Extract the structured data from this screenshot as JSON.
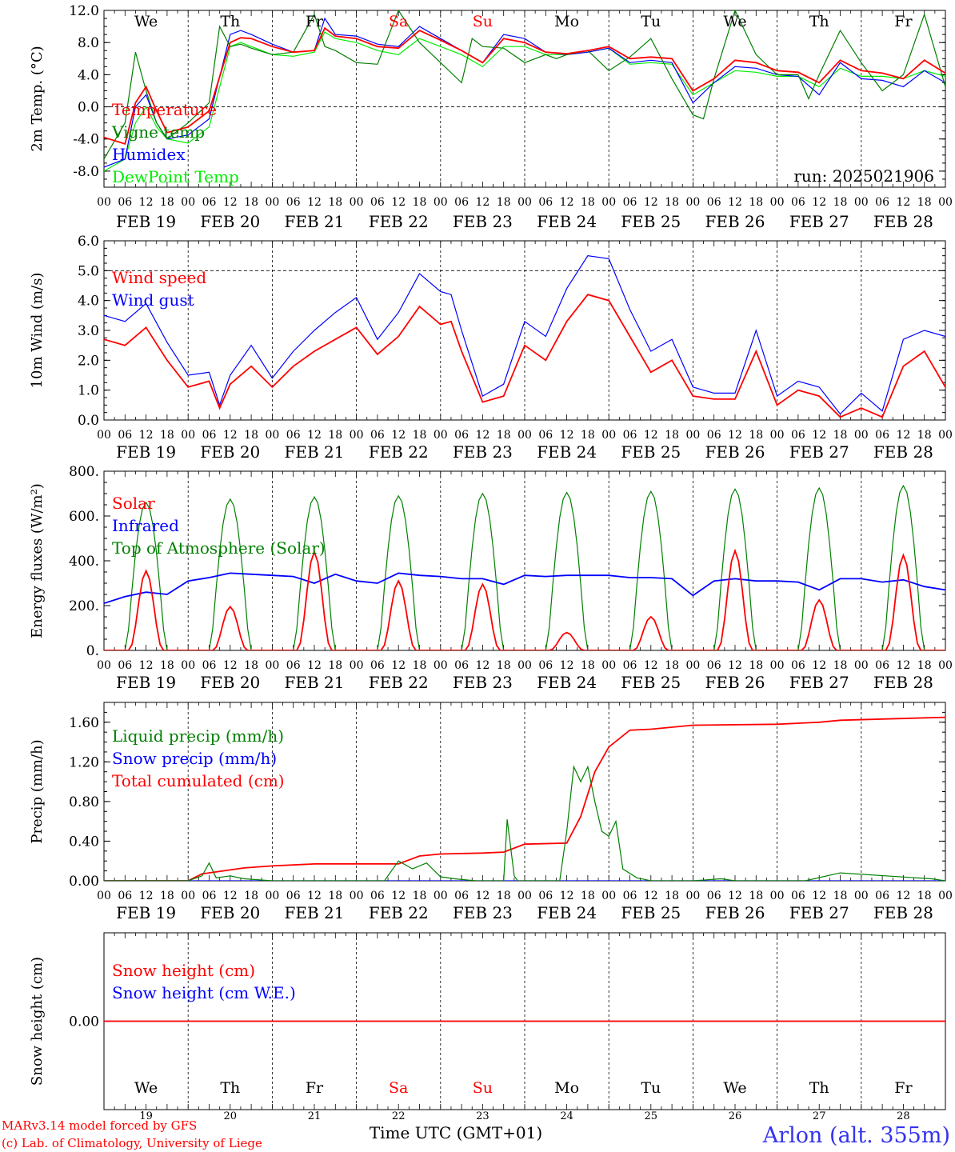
{
  "run_label": "run: 2025021906",
  "footer": {
    "credit_line1": "MARv3.14 model forced by GFS",
    "credit_line2": "(c) Lab. of Climatology, University of Liege",
    "time_axis_label": "Time UTC (GMT+01)",
    "station": "Arlon (alt. 355m)"
  },
  "days": {
    "weekday_names": [
      "We",
      "Th",
      "Fr",
      "Sa",
      "Su",
      "Mo",
      "Tu",
      "We",
      "Th",
      "Fr"
    ],
    "weekend_flags": [
      false,
      false,
      false,
      true,
      true,
      false,
      false,
      false,
      false,
      false
    ],
    "date_labels": [
      "FEB 19",
      "FEB 20",
      "FEB 21",
      "FEB 22",
      "FEB 23",
      "FEB 24",
      "FEB 25",
      "FEB 26",
      "FEB 27",
      "FEB 28"
    ],
    "day_numbers": [
      "19",
      "20",
      "21",
      "22",
      "23",
      "24",
      "25",
      "26",
      "27",
      "28"
    ],
    "hour_ticks": [
      "00",
      "06",
      "12",
      "18"
    ],
    "end_tick": "00"
  },
  "colors": {
    "red": "#ff0000",
    "green": "#008000",
    "blue": "#0000ff",
    "lightgreen": "#00ee00",
    "weekend": "#ff0000"
  },
  "chart_data": [
    {
      "id": "temperature",
      "type": "line",
      "ylabel": "2m Temp. (°C)",
      "ylim": [
        -10,
        12
      ],
      "yticks": [
        12,
        8,
        4,
        0,
        -4,
        -8
      ],
      "ytick_labels": [
        "12.0",
        "8.0",
        "4.0",
        "0.0",
        "-4.0",
        "-8.0"
      ],
      "dashed_y": [
        0
      ],
      "x_unit": "hours since FEB 19 00 UTC",
      "series": [
        {
          "name": "Temperature",
          "color": "red",
          "x": [
            0,
            6,
            9,
            12,
            15,
            18,
            24,
            30,
            36,
            39,
            42,
            48,
            54,
            60,
            63,
            66,
            72,
            78,
            84,
            90,
            96,
            102,
            108,
            114,
            120,
            126,
            132,
            138,
            144,
            150,
            156,
            162,
            168,
            174,
            180,
            186,
            192,
            198,
            204,
            210,
            216,
            222,
            228,
            234,
            240
          ],
          "y": [
            -3.8,
            -4.6,
            0.5,
            2.5,
            -0.5,
            -3.2,
            -2.5,
            -0.5,
            8.0,
            8.6,
            8.5,
            7.5,
            6.8,
            7.0,
            9.8,
            8.8,
            8.5,
            7.5,
            7.3,
            9.5,
            8.3,
            7.0,
            5.5,
            8.5,
            8.0,
            6.8,
            6.6,
            7.0,
            7.5,
            6.0,
            6.2,
            6.0,
            2.0,
            3.5,
            5.8,
            5.5,
            4.5,
            4.3,
            3.0,
            5.8,
            4.5,
            4.2,
            3.5,
            5.8,
            4.2
          ]
        },
        {
          "name": "Vigne temp",
          "color": "green",
          "x": [
            0,
            6,
            9,
            12,
            15,
            18,
            24,
            30,
            33,
            36,
            39,
            42,
            48,
            54,
            60,
            63,
            66,
            72,
            78,
            84,
            90,
            96,
            102,
            105,
            108,
            114,
            120,
            126,
            129,
            132,
            138,
            144,
            150,
            156,
            162,
            168,
            171,
            174,
            180,
            186,
            192,
            198,
            201,
            204,
            210,
            216,
            222,
            228,
            234,
            240
          ],
          "y": [
            -6.5,
            -2.0,
            6.8,
            2.0,
            -2.0,
            -4.0,
            -2.0,
            0.5,
            10.0,
            7.5,
            7.8,
            7.3,
            6.5,
            6.8,
            11.5,
            7.5,
            7.0,
            5.5,
            5.3,
            12.0,
            8.0,
            5.5,
            3.0,
            8.5,
            7.5,
            7.3,
            5.5,
            6.5,
            6.0,
            6.5,
            7.0,
            4.5,
            6.2,
            8.5,
            3.5,
            -1.0,
            -1.5,
            3.5,
            12.0,
            6.5,
            4.0,
            4.0,
            1.0,
            4.0,
            9.5,
            5.5,
            2.0,
            4.0,
            11.5,
            2.5
          ]
        },
        {
          "name": "Humidex",
          "color": "blue",
          "x": [
            0,
            6,
            9,
            12,
            15,
            18,
            24,
            30,
            36,
            39,
            42,
            48,
            54,
            60,
            63,
            66,
            72,
            78,
            84,
            90,
            96,
            102,
            108,
            114,
            120,
            126,
            132,
            138,
            144,
            150,
            156,
            162,
            168,
            174,
            180,
            186,
            192,
            198,
            204,
            210,
            216,
            222,
            228,
            234,
            240
          ],
          "y": [
            -7.5,
            -6.5,
            0.0,
            1.5,
            -2.0,
            -4.0,
            -3.5,
            -1.5,
            9.0,
            9.5,
            9.0,
            7.8,
            6.8,
            7.0,
            11.0,
            9.0,
            8.8,
            7.8,
            7.5,
            10.0,
            8.5,
            7.0,
            5.5,
            9.0,
            8.5,
            6.8,
            6.5,
            6.8,
            7.3,
            5.5,
            5.8,
            5.5,
            0.5,
            3.0,
            5.0,
            4.8,
            4.0,
            3.8,
            1.5,
            5.5,
            3.5,
            3.3,
            2.5,
            4.5,
            3.0
          ]
        },
        {
          "name": "DewPoint Temp",
          "color": "lightgreen",
          "x": [
            0,
            6,
            9,
            12,
            15,
            18,
            24,
            30,
            36,
            39,
            42,
            48,
            54,
            60,
            63,
            66,
            72,
            78,
            84,
            90,
            96,
            102,
            108,
            114,
            120,
            126,
            132,
            138,
            144,
            150,
            156,
            162,
            168,
            174,
            180,
            186,
            192,
            198,
            204,
            210,
            216,
            222,
            228,
            234,
            240
          ],
          "y": [
            -8.0,
            -6.5,
            -2.0,
            0.0,
            -2.5,
            -4.0,
            -4.5,
            -2.5,
            7.5,
            8.0,
            7.5,
            6.5,
            6.3,
            6.8,
            9.3,
            8.5,
            8.0,
            7.0,
            6.5,
            8.5,
            7.5,
            6.5,
            5.0,
            7.5,
            7.5,
            6.5,
            6.5,
            6.8,
            7.3,
            5.3,
            5.5,
            5.3,
            1.5,
            3.0,
            4.5,
            4.3,
            3.8,
            3.8,
            2.5,
            4.8,
            3.8,
            3.8,
            3.5,
            4.5,
            3.8
          ]
        }
      ],
      "legend_placement": "left"
    },
    {
      "id": "wind",
      "type": "line",
      "ylabel": "10m Wind (m/s)",
      "ylim": [
        0,
        6
      ],
      "yticks": [
        6,
        5,
        4,
        3,
        2,
        1,
        0
      ],
      "ytick_labels": [
        "6.0",
        "5.0",
        "4.0",
        "3.0",
        "2.0",
        "1.0",
        "0.0"
      ],
      "dashed_y": [
        5
      ],
      "x_unit": "hours since FEB 19 00 UTC",
      "series": [
        {
          "name": "Wind speed",
          "color": "red",
          "x": [
            0,
            6,
            12,
            18,
            24,
            30,
            33,
            36,
            42,
            48,
            54,
            60,
            66,
            72,
            78,
            84,
            90,
            96,
            99,
            102,
            108,
            114,
            120,
            126,
            132,
            138,
            144,
            150,
            156,
            162,
            168,
            174,
            180,
            186,
            192,
            198,
            204,
            210,
            216,
            222,
            228,
            234,
            240
          ],
          "y": [
            2.7,
            2.5,
            3.1,
            2.0,
            1.1,
            1.3,
            0.4,
            1.2,
            1.8,
            1.1,
            1.8,
            2.3,
            2.7,
            3.1,
            2.2,
            2.8,
            3.8,
            3.2,
            3.3,
            2.3,
            0.6,
            0.8,
            2.5,
            2.0,
            3.3,
            4.2,
            4.0,
            2.8,
            1.6,
            2.0,
            0.8,
            0.7,
            0.7,
            2.3,
            0.5,
            1.0,
            0.8,
            0.1,
            0.4,
            0.1,
            1.8,
            2.3,
            1.1
          ]
        },
        {
          "name": "Wind gust",
          "color": "blue",
          "x": [
            0,
            6,
            12,
            18,
            24,
            30,
            33,
            36,
            42,
            48,
            54,
            60,
            66,
            72,
            78,
            84,
            90,
            96,
            99,
            102,
            108,
            114,
            120,
            126,
            132,
            138,
            144,
            150,
            156,
            162,
            168,
            174,
            180,
            186,
            192,
            198,
            204,
            210,
            216,
            222,
            228,
            234,
            240
          ],
          "y": [
            3.5,
            3.3,
            3.9,
            2.6,
            1.5,
            1.6,
            0.5,
            1.5,
            2.5,
            1.4,
            2.3,
            3.0,
            3.6,
            4.1,
            2.7,
            3.6,
            4.9,
            4.3,
            4.2,
            3.0,
            0.8,
            1.2,
            3.3,
            2.8,
            4.4,
            5.5,
            5.4,
            3.7,
            2.3,
            2.7,
            1.1,
            0.9,
            0.9,
            3.0,
            0.8,
            1.3,
            1.1,
            0.2,
            0.9,
            0.3,
            2.7,
            3.0,
            2.8
          ]
        }
      ],
      "legend_placement": "left"
    },
    {
      "id": "energy",
      "type": "line",
      "ylabel": "Energy fluxes (W/m²)",
      "ylim": [
        0,
        800
      ],
      "yticks": [
        800,
        600,
        400,
        200,
        0
      ],
      "ytick_labels": [
        "800.",
        "600.",
        "400.",
        "200.",
        "0."
      ],
      "dashed_y": [],
      "x_unit": "hours since FEB 19 00 UTC",
      "series": [
        {
          "name": "Solar",
          "color": "red",
          "daily_peaks": [
            355,
            195,
            440,
            310,
            295,
            80,
            150,
            445,
            225,
            425
          ]
        },
        {
          "name": "Infrared",
          "color": "blue",
          "x": [
            0,
            6,
            12,
            18,
            24,
            30,
            36,
            42,
            48,
            54,
            60,
            66,
            72,
            78,
            84,
            90,
            96,
            102,
            108,
            114,
            120,
            126,
            132,
            138,
            144,
            150,
            156,
            162,
            168,
            174,
            180,
            186,
            192,
            198,
            204,
            210,
            216,
            222,
            228,
            234,
            240
          ],
          "y": [
            210,
            240,
            260,
            250,
            310,
            325,
            345,
            340,
            335,
            330,
            300,
            340,
            310,
            300,
            345,
            335,
            330,
            320,
            320,
            295,
            335,
            330,
            335,
            335,
            335,
            325,
            325,
            320,
            245,
            310,
            320,
            310,
            310,
            305,
            270,
            320,
            320,
            305,
            315,
            285,
            270
          ]
        },
        {
          "name": "Top of Atmosphere (Solar)",
          "color": "green",
          "daily_peaks": [
            660,
            675,
            685,
            690,
            700,
            705,
            710,
            720,
            725,
            735
          ]
        }
      ],
      "legend_placement": "left"
    },
    {
      "id": "precip",
      "type": "line",
      "ylabel": "Precip (mm/h)",
      "ylim": [
        0,
        1.8
      ],
      "yticks": [
        1.6,
        1.2,
        0.8,
        0.4,
        0.0
      ],
      "ytick_labels": [
        "1.60",
        "1.20",
        "0.80",
        "0.40",
        "0.00"
      ],
      "dashed_y": [],
      "x_unit": "hours since FEB 19 00 UTC",
      "series": [
        {
          "name": "Liquid precip (mm/h)",
          "color": "green",
          "x": [
            0,
            24,
            28,
            30,
            32,
            36,
            40,
            48,
            80,
            84,
            88,
            92,
            96,
            100,
            106,
            114,
            115,
            117,
            118,
            130,
            132,
            134,
            136,
            138,
            140,
            142,
            144,
            146,
            148,
            152,
            156,
            168,
            176,
            180,
            200,
            210,
            236,
            240
          ],
          "y": [
            0,
            0,
            0.05,
            0.18,
            0.03,
            0.05,
            0.02,
            0,
            0,
            0.2,
            0.12,
            0.18,
            0.04,
            0.02,
            0,
            0,
            0.62,
            0.05,
            0,
            0,
            0.5,
            1.15,
            1.0,
            1.15,
            0.8,
            0.5,
            0.45,
            0.6,
            0.12,
            0.03,
            0,
            0,
            0.02,
            0,
            0,
            0.08,
            0.02,
            0
          ]
        },
        {
          "name": "Snow precip (mm/h)",
          "color": "blue",
          "x": [
            0,
            240
          ],
          "y": [
            0,
            0
          ]
        },
        {
          "name": "Total cumulated (cm)",
          "color": "red",
          "x": [
            0,
            24,
            28,
            34,
            40,
            48,
            60,
            72,
            84,
            90,
            96,
            108,
            114,
            120,
            132,
            136,
            140,
            144,
            150,
            156,
            168,
            192,
            204,
            210,
            240
          ],
          "y": [
            0,
            0,
            0.07,
            0.1,
            0.13,
            0.15,
            0.17,
            0.17,
            0.17,
            0.25,
            0.27,
            0.28,
            0.29,
            0.37,
            0.38,
            0.65,
            1.1,
            1.35,
            1.52,
            1.53,
            1.57,
            1.58,
            1.6,
            1.62,
            1.65
          ]
        }
      ],
      "legend_placement": "left"
    },
    {
      "id": "snow",
      "type": "line",
      "ylabel": "Snow height (cm)",
      "ylim": [
        -1,
        1
      ],
      "yticks": [
        0
      ],
      "ytick_labels": [
        "0.00"
      ],
      "dashed_y": [],
      "x_unit": "hours since FEB 19 00 UTC",
      "series": [
        {
          "name": "Snow height (cm)",
          "color": "red",
          "x": [
            0,
            240
          ],
          "y": [
            0,
            0
          ]
        },
        {
          "name": "Snow height (cm W.E.)",
          "color": "blue",
          "x": [
            0,
            240
          ],
          "y": [
            0,
            0
          ]
        }
      ],
      "legend_placement": "left"
    }
  ]
}
